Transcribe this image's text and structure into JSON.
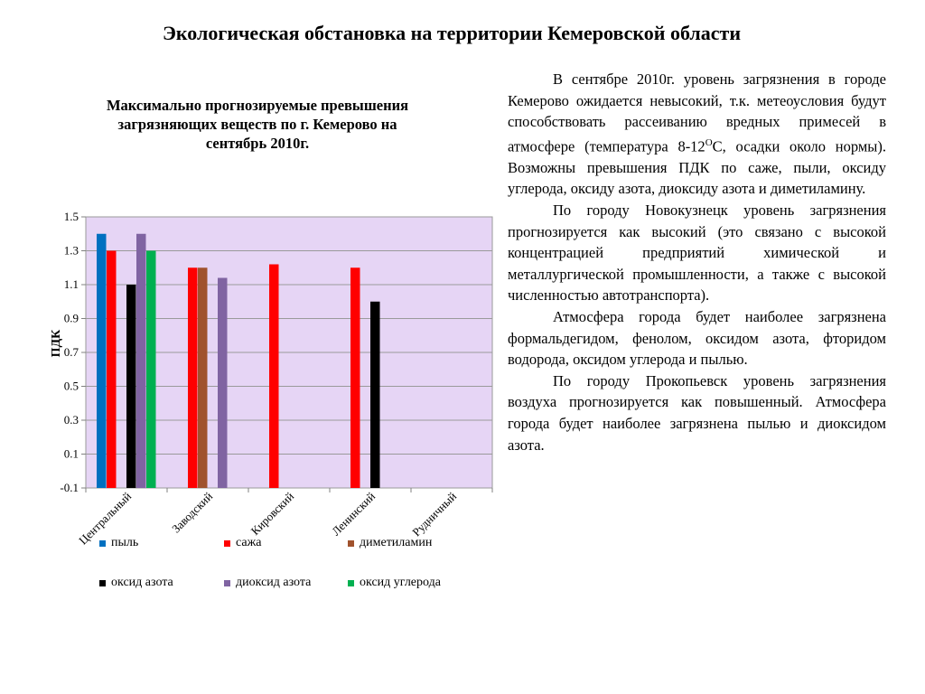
{
  "slide": {
    "title": "Экологическая обстановка на территории Кемеровской области"
  },
  "chart_data": {
    "type": "bar",
    "title": "Максимально прогнозируемые превышения загрязняющих веществ по  г. Кемерово на сентябрь 2010г.",
    "ylabel": "ПДК",
    "xlabel": "",
    "ylim": [
      -0.1,
      1.5
    ],
    "yticks": [
      "-0.1",
      "0.1",
      "0.3",
      "0.5",
      "0.7",
      "0.9",
      "1.1",
      "1.3",
      "1.5"
    ],
    "grid": true,
    "plot_background": "#e6d5f5",
    "legend_position": "bottom",
    "categories": [
      "Центральный",
      "Заводский",
      "Кировский",
      "Ленинский",
      "Рудничный"
    ],
    "series": [
      {
        "name": "пыль",
        "color": "#0070c0",
        "values": [
          1.4,
          null,
          null,
          null,
          null
        ]
      },
      {
        "name": "сажа",
        "color": "#ff0000",
        "values": [
          1.3,
          1.2,
          1.22,
          1.2,
          null
        ]
      },
      {
        "name": "диметиламин",
        "color": "#a0522d",
        "values": [
          null,
          1.2,
          null,
          null,
          null
        ]
      },
      {
        "name": "оксид азота",
        "color": "#000000",
        "values": [
          1.1,
          null,
          null,
          1.0,
          null
        ]
      },
      {
        "name": "диоксид азота",
        "color": "#8064a2",
        "values": [
          1.4,
          1.14,
          null,
          null,
          null
        ]
      },
      {
        "name": "оксид углерода",
        "color": "#00b050",
        "values": [
          1.3,
          null,
          null,
          null,
          null
        ]
      }
    ]
  },
  "text": {
    "p1_part1": "В сентябре 2010г. уровень загрязнения в городе   Кемерово ожидается невысокий, т.к. метеоусловия будут способствовать рассеиванию вредных примесей в атмосфере (температура 8-12",
    "p1_sup": "О",
    "p1_part2": "С, осадки около нормы). Возможны превышения ПДК  по саже, пыли, оксиду углерода, оксиду азота, диоксиду азота и диметиламину.",
    "p2": "По городу Новокузнецк уровень загрязнения прогнозируется как высокий (это связано с высокой концентрацией предприятий химической и металлургической промышленности, а также с высокой численностью автотранспорта).",
    "p3": "Атмосфера города будет наиболее загрязнена формальдегидом, фенолом, оксидом азота, фторидом водорода, оксидом углерода и пылью.",
    "p4": "По городу Прокопьевск уровень загрязнения воздуха прогнозируется как повышенный. Атмосфера города будет наиболее загрязнена пылью и диоксидом азота."
  }
}
